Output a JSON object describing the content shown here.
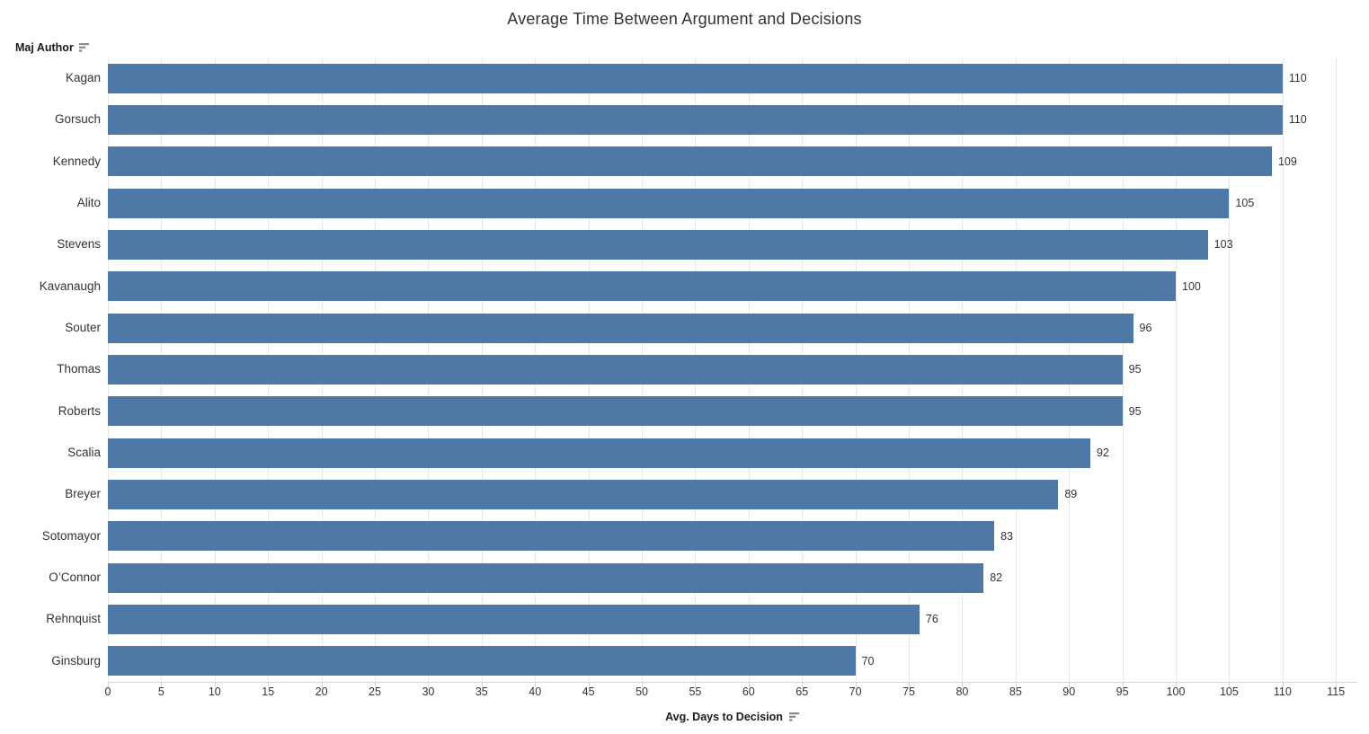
{
  "chart_data": {
    "type": "bar",
    "orientation": "horizontal",
    "title": "Average Time Between Argument and Decisions",
    "row_field_label": "Maj Author",
    "xlabel": "Avg. Days to Decision",
    "categories": [
      "Kagan",
      "Gorsuch",
      "Kennedy",
      "Alito",
      "Stevens",
      "Kavanaugh",
      "Souter",
      "Thomas",
      "Roberts",
      "Scalia",
      "Breyer",
      "Sotomayor",
      "O’Connor",
      "Rehnquist",
      "Ginsburg"
    ],
    "values": [
      110,
      110,
      109,
      105,
      103,
      100,
      96,
      95,
      95,
      92,
      89,
      83,
      82,
      76,
      70
    ],
    "xlim": [
      0,
      115
    ],
    "x_ticks": [
      0,
      5,
      10,
      15,
      20,
      25,
      30,
      35,
      40,
      45,
      50,
      55,
      60,
      65,
      70,
      75,
      80,
      85,
      90,
      95,
      100,
      105,
      110,
      115
    ],
    "grid": true,
    "legend": "none",
    "sort_indicator": "descending",
    "bar_color": "#4e79a7"
  },
  "colors": {
    "bar": "#4e79a7",
    "gridline": "#e9e9e9",
    "axis_line": "#d8d8d8",
    "text": "#333333",
    "bold_text": "#1a1a1a",
    "sort_icon": "#8a8a8a",
    "background": "#ffffff"
  }
}
